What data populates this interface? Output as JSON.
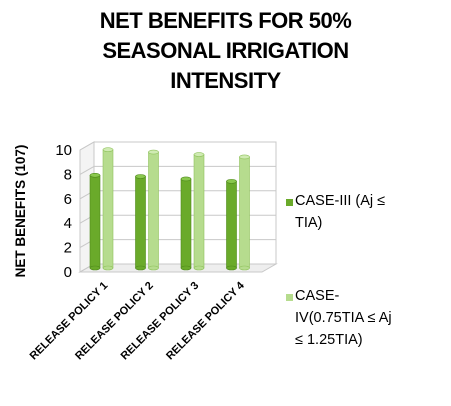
{
  "chart_data": {
    "type": "bar",
    "title": [
      "NET BENEFITS FOR 50%",
      "SEASONAL IRRIGATION",
      "INTENSITY"
    ],
    "xlabel": "",
    "ylabel": "NET BENEFITS  (107)",
    "ylim": [
      0,
      10
    ],
    "yticks": [
      "0",
      "2",
      "4",
      "6",
      "8",
      "10"
    ],
    "grid": true,
    "legend_position": "right",
    "categories": [
      "RELEASE POLICY 1",
      "RELEASE POLICY 2",
      "RELEASE POLICY 3",
      "RELEASE POLICY 4"
    ],
    "series": [
      {
        "name": "CASE-III (Aj  ≤ TIA)",
        "color": "#6aaa2a",
        "legend_lines": [
          "CASE-III (Aj  ≤",
          "TIA)"
        ],
        "values": [
          7.6,
          7.5,
          7.3,
          7.1
        ]
      },
      {
        "name": "CASE-IV(0.75TIA ≤  Aj ≤ 1.25TIA)",
        "color": "#b6dc8e",
        "legend_lines": [
          "CASE-",
          "IV(0.75TIA ≤  Aj",
          "≤ 1.25TIA)"
        ],
        "values": [
          9.7,
          9.5,
          9.3,
          9.1
        ]
      }
    ]
  }
}
